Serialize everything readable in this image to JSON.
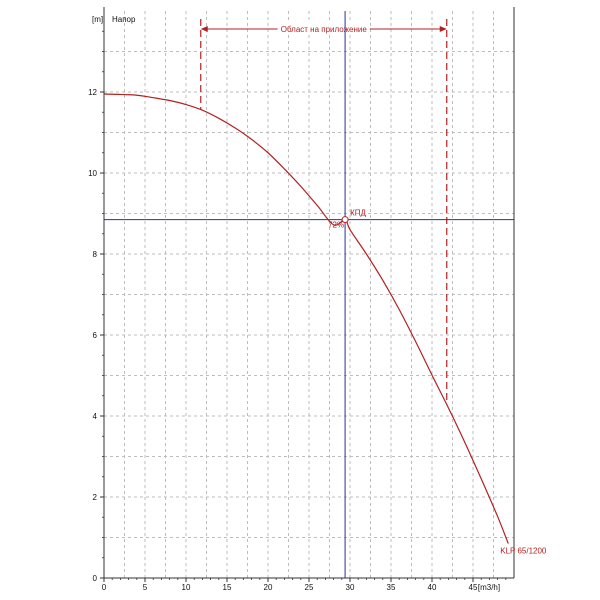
{
  "chart_data": {
    "type": "line",
    "title": "Напор",
    "xlabel": "[m3/h]",
    "ylabel": "[m]",
    "xlim": [
      0,
      50
    ],
    "ylim": [
      0,
      14
    ],
    "x_ticks": [
      0,
      5,
      10,
      15,
      20,
      25,
      30,
      35,
      40,
      45
    ],
    "y_ticks": [
      0,
      2,
      4,
      6,
      8,
      10,
      12
    ],
    "grid": true,
    "series": [
      {
        "name": "KLP 65/1200",
        "color": "#b32020",
        "x": [
          0,
          2,
          4,
          6,
          8,
          10,
          12,
          14,
          16,
          18,
          20,
          22,
          24,
          26,
          28,
          29.4,
          30,
          32,
          34,
          36,
          38,
          40,
          42,
          44,
          46,
          48,
          49.3
        ],
        "y": [
          11.95,
          11.94,
          11.92,
          11.86,
          11.79,
          11.69,
          11.55,
          11.35,
          11.11,
          10.83,
          10.5,
          10.1,
          9.67,
          9.2,
          8.72,
          8.85,
          8.6,
          8.0,
          7.35,
          6.63,
          5.84,
          5.01,
          4.2,
          3.35,
          2.45,
          1.52,
          0.85
        ]
      }
    ],
    "operating_point": {
      "x": 29.4,
      "y": 8.85,
      "label": "КПД",
      "value_label": "72%",
      "crosshair_color": "#2233a0"
    },
    "application_range": {
      "label": "Област на приложение",
      "x_min": 11.8,
      "x_max": 41.8,
      "color": "#b32020"
    }
  }
}
